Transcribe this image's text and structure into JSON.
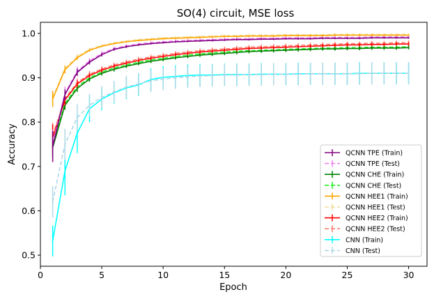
{
  "chart_data": {
    "type": "line",
    "title": "SO(4) circuit, MSE loss",
    "xlabel": "Epoch",
    "ylabel": "Accuracy",
    "xlim": [
      0,
      31.5
    ],
    "ylim": [
      0.475,
      1.025
    ],
    "xticks": [
      0,
      5,
      10,
      15,
      20,
      25,
      30
    ],
    "yticks": [
      0.5,
      0.6,
      0.7,
      0.8,
      0.9,
      1.0
    ],
    "ytick_labels": [
      "0.5",
      "0.6",
      "0.7",
      "0.8",
      "0.9",
      "1.0"
    ],
    "legend_position": "lower-right",
    "x": [
      1,
      2,
      3,
      4,
      5,
      6,
      7,
      8,
      9,
      10,
      11,
      12,
      13,
      14,
      15,
      16,
      17,
      18,
      19,
      20,
      21,
      22,
      23,
      24,
      25,
      26,
      27,
      28,
      29,
      30
    ],
    "series": [
      {
        "name": "QCNN TPE (Train)",
        "color": "#800080",
        "dashed": false,
        "values": [
          0.745,
          0.862,
          0.912,
          0.935,
          0.952,
          0.964,
          0.97,
          0.974,
          0.977,
          0.979,
          0.981,
          0.982,
          0.983,
          0.984,
          0.985,
          0.986,
          0.986,
          0.987,
          0.987,
          0.988,
          0.988,
          0.988,
          0.989,
          0.989,
          0.989,
          0.989,
          0.99,
          0.99,
          0.99,
          0.99
        ],
        "errors": [
          0.035,
          0.012,
          0.008,
          0.005,
          0.004,
          0.003,
          0.003,
          0.002,
          0.002,
          0.002,
          0.002,
          0.002,
          0.002,
          0.002,
          0.002,
          0.002,
          0.002,
          0.002,
          0.002,
          0.002,
          0.002,
          0.002,
          0.002,
          0.002,
          0.002,
          0.002,
          0.002,
          0.002,
          0.002,
          0.002
        ]
      },
      {
        "name": "QCNN TPE (Test)",
        "color": "#ee82ee",
        "dashed": true,
        "values": [
          0.752,
          0.865,
          0.915,
          0.938,
          0.955,
          0.966,
          0.972,
          0.976,
          0.979,
          0.981,
          0.983,
          0.984,
          0.985,
          0.986,
          0.987,
          0.988,
          0.988,
          0.989,
          0.989,
          0.99,
          0.99,
          0.99,
          0.991,
          0.991,
          0.991,
          0.991,
          0.992,
          0.992,
          0.992,
          0.992
        ],
        "errors": [
          0.03,
          0.015,
          0.01,
          0.006,
          0.005,
          0.004,
          0.003,
          0.003,
          0.003,
          0.003,
          0.003,
          0.003,
          0.003,
          0.003,
          0.003,
          0.003,
          0.003,
          0.003,
          0.003,
          0.003,
          0.003,
          0.003,
          0.003,
          0.003,
          0.003,
          0.003,
          0.003,
          0.003,
          0.003,
          0.003
        ]
      },
      {
        "name": "QCNN CHE (Train)",
        "color": "#008000",
        "dashed": false,
        "values": [
          0.742,
          0.838,
          0.876,
          0.897,
          0.91,
          0.919,
          0.926,
          0.932,
          0.937,
          0.941,
          0.945,
          0.948,
          0.951,
          0.953,
          0.955,
          0.957,
          0.959,
          0.96,
          0.961,
          0.962,
          0.963,
          0.964,
          0.965,
          0.965,
          0.966,
          0.966,
          0.967,
          0.967,
          0.967,
          0.968
        ],
        "errors": [
          0.02,
          0.01,
          0.008,
          0.006,
          0.005,
          0.005,
          0.004,
          0.004,
          0.004,
          0.004,
          0.004,
          0.004,
          0.004,
          0.004,
          0.004,
          0.004,
          0.004,
          0.004,
          0.004,
          0.004,
          0.004,
          0.004,
          0.004,
          0.004,
          0.004,
          0.004,
          0.004,
          0.004,
          0.004,
          0.004
        ]
      },
      {
        "name": "QCNN CHE (Test)",
        "color": "#22ee22",
        "dashed": true,
        "values": [
          0.748,
          0.842,
          0.88,
          0.9,
          0.913,
          0.922,
          0.929,
          0.935,
          0.94,
          0.944,
          0.948,
          0.951,
          0.954,
          0.956,
          0.958,
          0.96,
          0.961,
          0.962,
          0.963,
          0.964,
          0.965,
          0.966,
          0.967,
          0.967,
          0.968,
          0.968,
          0.969,
          0.969,
          0.969,
          0.97
        ],
        "errors": [
          0.025,
          0.012,
          0.01,
          0.008,
          0.007,
          0.006,
          0.006,
          0.005,
          0.005,
          0.005,
          0.005,
          0.005,
          0.005,
          0.005,
          0.005,
          0.005,
          0.005,
          0.005,
          0.005,
          0.005,
          0.005,
          0.005,
          0.005,
          0.005,
          0.005,
          0.005,
          0.005,
          0.005,
          0.005,
          0.005
        ]
      },
      {
        "name": "QCNN HEE1 (Train)",
        "color": "#ffa500",
        "dashed": false,
        "values": [
          0.852,
          0.918,
          0.945,
          0.962,
          0.971,
          0.977,
          0.981,
          0.984,
          0.986,
          0.988,
          0.989,
          0.99,
          0.991,
          0.992,
          0.993,
          0.993,
          0.994,
          0.994,
          0.994,
          0.995,
          0.995,
          0.995,
          0.995,
          0.996,
          0.996,
          0.996,
          0.996,
          0.996,
          0.996,
          0.996
        ],
        "errors": [
          0.018,
          0.008,
          0.005,
          0.003,
          0.002,
          0.002,
          0.002,
          0.002,
          0.002,
          0.002,
          0.002,
          0.002,
          0.002,
          0.002,
          0.002,
          0.002,
          0.002,
          0.002,
          0.002,
          0.002,
          0.002,
          0.002,
          0.002,
          0.002,
          0.002,
          0.002,
          0.002,
          0.002,
          0.002,
          0.002
        ]
      },
      {
        "name": "QCNN HEE1 (Test)",
        "color": "#eedd99",
        "dashed": true,
        "values": [
          0.856,
          0.921,
          0.948,
          0.964,
          0.973,
          0.979,
          0.983,
          0.986,
          0.988,
          0.99,
          0.991,
          0.992,
          0.993,
          0.994,
          0.995,
          0.995,
          0.996,
          0.996,
          0.996,
          0.997,
          0.997,
          0.997,
          0.997,
          0.998,
          0.998,
          0.998,
          0.998,
          0.998,
          0.998,
          0.998
        ],
        "errors": [
          0.015,
          0.008,
          0.005,
          0.003,
          0.002,
          0.002,
          0.002,
          0.002,
          0.002,
          0.002,
          0.002,
          0.002,
          0.002,
          0.002,
          0.002,
          0.002,
          0.002,
          0.002,
          0.002,
          0.002,
          0.002,
          0.002,
          0.002,
          0.002,
          0.002,
          0.002,
          0.002,
          0.002,
          0.002,
          0.002
        ]
      },
      {
        "name": "QCNN HEE2 (Train)",
        "color": "#ff0000",
        "dashed": false,
        "values": [
          0.765,
          0.85,
          0.886,
          0.905,
          0.917,
          0.926,
          0.933,
          0.939,
          0.944,
          0.948,
          0.952,
          0.955,
          0.958,
          0.96,
          0.962,
          0.964,
          0.966,
          0.967,
          0.968,
          0.969,
          0.97,
          0.971,
          0.972,
          0.973,
          0.974,
          0.974,
          0.975,
          0.975,
          0.976,
          0.976
        ],
        "errors": [
          0.03,
          0.012,
          0.008,
          0.006,
          0.005,
          0.005,
          0.004,
          0.004,
          0.004,
          0.004,
          0.004,
          0.004,
          0.004,
          0.004,
          0.004,
          0.004,
          0.004,
          0.004,
          0.004,
          0.004,
          0.004,
          0.004,
          0.004,
          0.004,
          0.004,
          0.004,
          0.004,
          0.004,
          0.004,
          0.004
        ]
      },
      {
        "name": "QCNN HEE2 (Test)",
        "color": "#fa8072",
        "dashed": true,
        "values": [
          0.77,
          0.853,
          0.889,
          0.908,
          0.92,
          0.929,
          0.936,
          0.942,
          0.947,
          0.951,
          0.955,
          0.958,
          0.961,
          0.963,
          0.965,
          0.967,
          0.969,
          0.97,
          0.971,
          0.972,
          0.973,
          0.974,
          0.975,
          0.976,
          0.977,
          0.977,
          0.978,
          0.978,
          0.979,
          0.979
        ],
        "errors": [
          0.028,
          0.012,
          0.009,
          0.007,
          0.006,
          0.005,
          0.005,
          0.005,
          0.005,
          0.005,
          0.005,
          0.005,
          0.005,
          0.005,
          0.005,
          0.005,
          0.005,
          0.005,
          0.005,
          0.005,
          0.005,
          0.005,
          0.005,
          0.005,
          0.005,
          0.005,
          0.005,
          0.005,
          0.005,
          0.005
        ]
      },
      {
        "name": "CNN (Train)",
        "color": "#00ffff",
        "dashed": false,
        "values": [
          0.532,
          0.69,
          0.775,
          0.83,
          0.852,
          0.866,
          0.877,
          0.884,
          0.896,
          0.901,
          0.903,
          0.905,
          0.906,
          0.906,
          0.907,
          0.907,
          0.907,
          0.908,
          0.908,
          0.908,
          0.909,
          0.909,
          0.909,
          0.909,
          0.909,
          0.91,
          0.91,
          0.91,
          0.91,
          0.91
        ],
        "errors": [
          0.035,
          0.055,
          0.045,
          0.03,
          0.025,
          0.025,
          0.025,
          0.025,
          0.025,
          0.025,
          0.025,
          0.025,
          0.025,
          0.025,
          0.025,
          0.025,
          0.025,
          0.025,
          0.025,
          0.025,
          0.025,
          0.025,
          0.025,
          0.025,
          0.025,
          0.025,
          0.025,
          0.025,
          0.025,
          0.025
        ]
      },
      {
        "name": "CNN (Test)",
        "color": "#add8e6",
        "dashed": true,
        "values": [
          0.62,
          0.75,
          0.81,
          0.838,
          0.856,
          0.868,
          0.879,
          0.886,
          0.893,
          0.897,
          0.9,
          0.902,
          0.904,
          0.905,
          0.906,
          0.906,
          0.907,
          0.907,
          0.908,
          0.908,
          0.908,
          0.909,
          0.909,
          0.909,
          0.909,
          0.909,
          0.91,
          0.91,
          0.91,
          0.91
        ],
        "errors": [
          0.035,
          0.035,
          0.03,
          0.025,
          0.025,
          0.025,
          0.025,
          0.025,
          0.025,
          0.025,
          0.025,
          0.025,
          0.025,
          0.025,
          0.025,
          0.025,
          0.025,
          0.025,
          0.025,
          0.025,
          0.025,
          0.025,
          0.025,
          0.025,
          0.025,
          0.025,
          0.025,
          0.025,
          0.025,
          0.025
        ]
      }
    ]
  }
}
